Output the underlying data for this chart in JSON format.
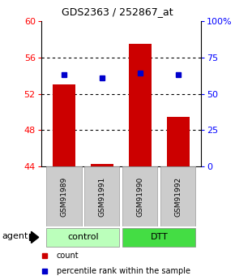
{
  "title": "GDS2363 / 252867_at",
  "samples": [
    "GSM91989",
    "GSM91991",
    "GSM91990",
    "GSM91992"
  ],
  "count_values": [
    53.0,
    44.3,
    57.5,
    49.5
  ],
  "percentile_values": [
    63,
    61,
    64,
    63
  ],
  "left_ylim": [
    44,
    60
  ],
  "left_yticks": [
    44,
    48,
    52,
    56,
    60
  ],
  "right_ylim": [
    0,
    100
  ],
  "right_yticks": [
    0,
    25,
    50,
    75,
    100
  ],
  "right_yticklabels": [
    "0",
    "25",
    "50",
    "75",
    "100%"
  ],
  "bar_color": "#cc0000",
  "dot_color": "#0000cc",
  "control_color": "#bbffbb",
  "dtt_color": "#44dd44",
  "sample_box_color": "#cccccc",
  "bar_width": 0.6,
  "legend_items": [
    "count",
    "percentile rank within the sample"
  ],
  "agent_label": "agent",
  "title_fontsize": 9,
  "tick_fontsize": 8,
  "sample_fontsize": 6.5,
  "group_fontsize": 8,
  "legend_fontsize": 7
}
